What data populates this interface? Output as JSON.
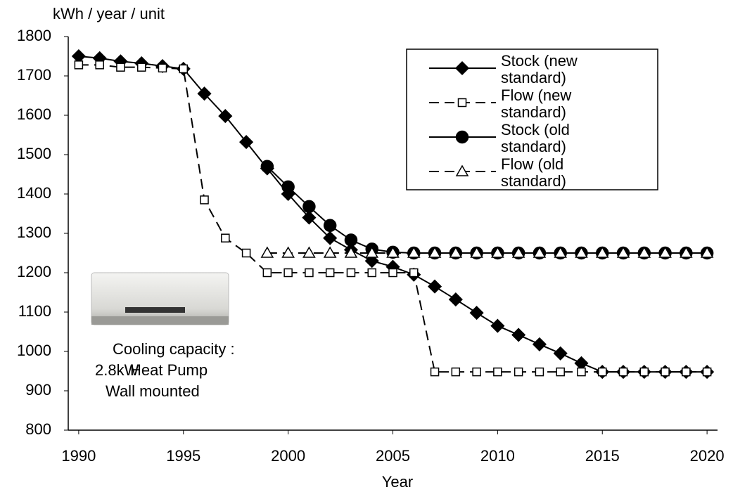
{
  "chart_data": {
    "type": "line",
    "y_label": "kWh / year / unit",
    "x_label": "Year",
    "annotations": [
      "Cooling capacity :",
      "2.8kW",
      "Heat Pump",
      "Wall mounted"
    ],
    "x": [
      1990,
      1991,
      1992,
      1993,
      1994,
      1995,
      1996,
      1997,
      1998,
      1999,
      2000,
      2001,
      2002,
      2003,
      2004,
      2005,
      2006,
      2007,
      2008,
      2009,
      2010,
      2011,
      2012,
      2013,
      2014,
      2015,
      2016,
      2017,
      2018,
      2019,
      2020
    ],
    "xlim": [
      1989.5,
      2020.5
    ],
    "xticks": [
      1990,
      1995,
      2000,
      2005,
      2010,
      2015,
      2020
    ],
    "ylim": [
      800,
      1800
    ],
    "yticks": [
      800,
      900,
      1000,
      1100,
      1200,
      1300,
      1400,
      1500,
      1600,
      1700,
      1800
    ],
    "legend": "upper-right",
    "series": [
      {
        "name": "Stock (new standard)",
        "color": "#000000",
        "marker": "diamond",
        "dashed": false,
        "values": [
          1750,
          1745,
          1737,
          1732,
          1725,
          1718,
          1655,
          1598,
          1532,
          1465,
          1400,
          1340,
          1288,
          1258,
          1230,
          1215,
          1195,
          1165,
          1132,
          1098,
          1065,
          1042,
          1018,
          995,
          970,
          948,
          948,
          948,
          948,
          948,
          948
        ]
      },
      {
        "name": "Flow (new standard)",
        "color": "#000000",
        "marker": "square",
        "dashed": true,
        "values": [
          1728,
          1728,
          1722,
          1722,
          1720,
          1718,
          1385,
          1288,
          1250,
          1200,
          1200,
          1200,
          1200,
          1200,
          1200,
          1200,
          1200,
          948,
          948,
          948,
          948,
          948,
          948,
          948,
          948,
          948,
          948,
          948,
          948,
          948,
          948
        ]
      },
      {
        "name": "Stock (old standard)",
        "color": "#000000",
        "marker": "circle",
        "dashed": false,
        "values": [
          null,
          null,
          null,
          null,
          null,
          null,
          null,
          null,
          null,
          1470,
          1418,
          1368,
          1320,
          1283,
          1260,
          1252,
          1250,
          1250,
          1250,
          1250,
          1250,
          1250,
          1250,
          1250,
          1250,
          1250,
          1250,
          1250,
          1250,
          1250,
          1250
        ]
      },
      {
        "name": "Flow (old standard)",
        "color": "#000000",
        "marker": "triangle",
        "dashed": true,
        "values": [
          null,
          null,
          null,
          null,
          null,
          null,
          null,
          null,
          null,
          1250,
          1250,
          1250,
          1250,
          1250,
          1250,
          1250,
          1250,
          1250,
          1250,
          1250,
          1250,
          1250,
          1250,
          1250,
          1250,
          1250,
          1250,
          1250,
          1250,
          1250,
          1250
        ]
      }
    ]
  }
}
